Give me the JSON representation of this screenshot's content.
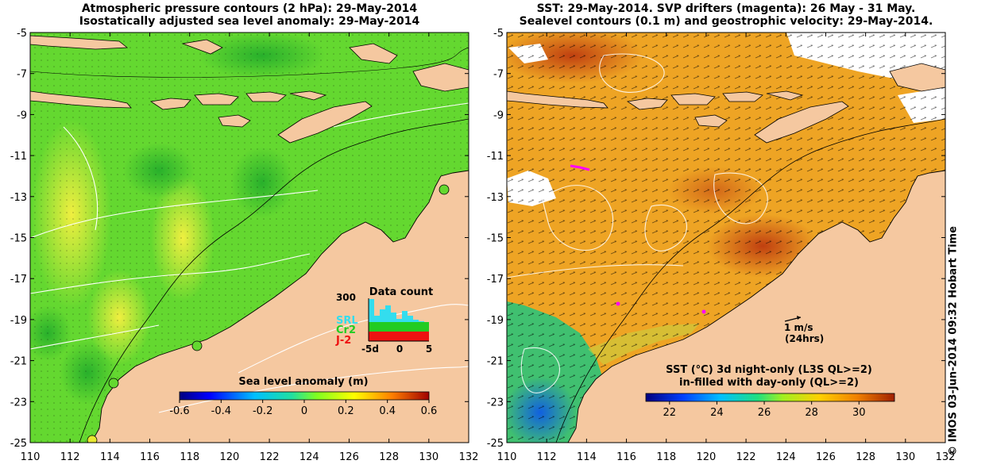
{
  "left_panel": {
    "title_line1": "Atmospheric pressure contours (2 hPa): 29-May-2014",
    "title_line2": "Isostatically adjusted sea level anomaly: 29-May-2014",
    "y_ticks": [
      "-5",
      "-7",
      "-9",
      "-11",
      "-13",
      "-15",
      "-17",
      "-19",
      "-21",
      "-23",
      "-25"
    ],
    "x_ticks": [
      "110",
      "112",
      "114",
      "116",
      "118",
      "120",
      "122",
      "124",
      "126",
      "128",
      "130",
      "132"
    ],
    "colorbar": {
      "title": "Sea level anomaly (m)",
      "ticks": [
        "-0.6",
        "-0.4",
        "-0.2",
        "0",
        "0.2",
        "0.4",
        "0.6"
      ],
      "range": [
        -0.6,
        0.6
      ]
    },
    "data_count": {
      "title": "Data count",
      "y_max_label": "300",
      "x_labels": [
        "-5d",
        "0",
        "5"
      ],
      "satellites": [
        {
          "name": "SRL",
          "color": "#33ddee"
        },
        {
          "name": "Cr2",
          "color": "#22cc22"
        },
        {
          "name": "J-2",
          "color": "#ee1111"
        }
      ]
    }
  },
  "right_panel": {
    "title_line1": "SST: 29-May-2014. SVP drifters (magenta): 26 May - 31 May.",
    "title_line2": "Sealevel contours (0.1 m) and geostrophic velocity: 29-May-2014.",
    "y_ticks": [
      "-5",
      "-7",
      "-9",
      "-11",
      "-13",
      "-15",
      "-17",
      "-19",
      "-21",
      "-23",
      "-25"
    ],
    "x_ticks": [
      "110",
      "112",
      "114",
      "116",
      "118",
      "120",
      "122",
      "124",
      "126",
      "128",
      "130",
      "132"
    ],
    "velocity_scale": {
      "label": "1 m/s",
      "sub": "(24hrs)"
    },
    "colorbar": {
      "title_line1": "SST (°C)  3d night-only (L3S QL>=2)",
      "title_line2": "in-filled with day-only (QL>=2)",
      "ticks": [
        "22",
        "24",
        "26",
        "28",
        "30"
      ],
      "range": [
        21,
        31.5
      ]
    }
  },
  "credit": "© IMOS 03-Jun-2014 09:32 Hobart Time",
  "colors": {
    "land": "#f5c8a0",
    "sla_green": "#5fd62a",
    "sst_orange": "#f0a020"
  }
}
